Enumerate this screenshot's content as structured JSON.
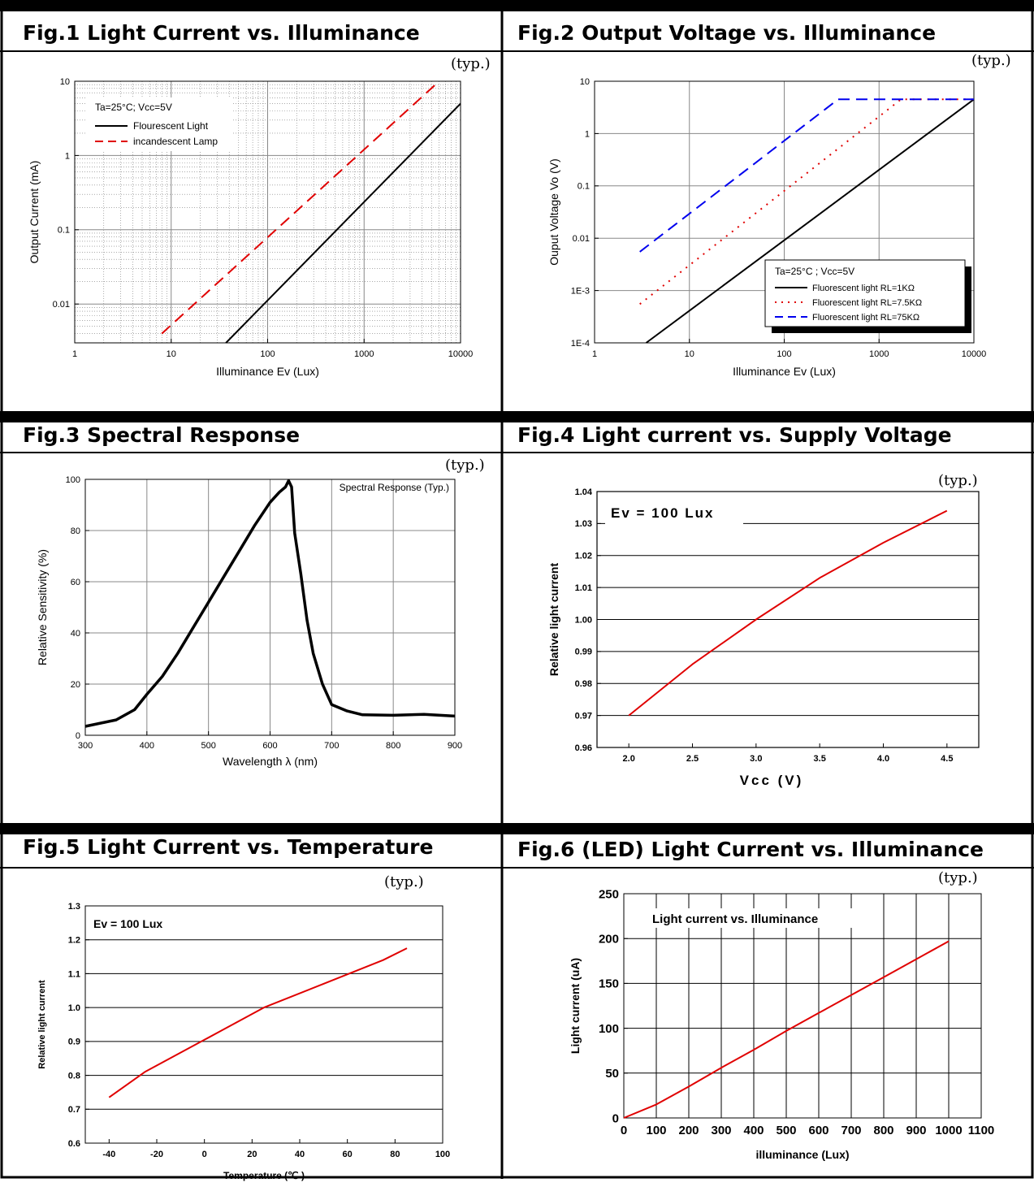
{
  "figures": [
    {
      "title": "Fig.1   Light Current vs. Illuminance",
      "typ": "(typ.)"
    },
    {
      "title": "Fig.2   Output Voltage vs. Illuminance",
      "typ": "(typ.)"
    },
    {
      "title": "Fig.3   Spectral Response",
      "typ": "(typ.)"
    },
    {
      "title": "Fig.4   Light current vs. Supply Voltage",
      "typ": "(typ.)"
    },
    {
      "title": "Fig.5   Light Current vs. Temperature",
      "typ": "(typ.)"
    },
    {
      "title": "Fig.6   (LED) Light Current vs. Illuminance",
      "typ": "(typ.)"
    }
  ],
  "chart_data": [
    {
      "type": "line",
      "xscale": "log",
      "yscale": "log",
      "xlim": [
        1,
        10000
      ],
      "ylim": [
        0.003,
        10
      ],
      "xticks": [
        "1",
        "10",
        "100",
        "1000",
        "10000"
      ],
      "yticks": [
        "0.01",
        "0.1",
        "1",
        "10"
      ],
      "xlabel": "Illuminance Ev (Lux)",
      "ylabel": "Output Current (mA)",
      "annotation": "Ta=25°C; Vcc=5V",
      "legend_position": "top-left",
      "grid": true,
      "series": [
        {
          "name": "Flourescent Light",
          "color": "#000000",
          "dash": "solid",
          "x": [
            37,
            10000
          ],
          "y": [
            0.003,
            5
          ]
        },
        {
          "name": "incandescent Lamp",
          "color": "#e00000",
          "dash": "dashed",
          "x": [
            8,
            6000
          ],
          "y": [
            0.004,
            10
          ]
        }
      ]
    },
    {
      "type": "line",
      "xscale": "log",
      "yscale": "log",
      "xlim": [
        1,
        10000
      ],
      "ylim": [
        0.0001,
        10
      ],
      "xticks": [
        "1",
        "10",
        "100",
        "1000",
        "10000"
      ],
      "yticks": [
        "1E-4",
        "1E-3",
        "0.01",
        "0.1",
        "1",
        "10"
      ],
      "xlabel": "Illuminance Ev (Lux)",
      "ylabel": "Ouput Voltage Vo (V)",
      "annotation": "Ta=25°C ; Vcc=5V",
      "legend_position": "bottom-right",
      "grid": true,
      "series": [
        {
          "name": "Fluorescent light  RL=1KΩ",
          "color": "#000000",
          "dash": "solid",
          "x": [
            3.5,
            10000
          ],
          "y": [
            0.0001,
            4.5
          ]
        },
        {
          "name": "Fluorescent light  RL=7.5KΩ",
          "color": "#e00000",
          "dash": "dotted",
          "x": [
            3,
            1700,
            10000
          ],
          "y": [
            0.00055,
            4.5,
            4.5
          ]
        },
        {
          "name": "Fluorescent light  RL=75KΩ",
          "color": "#0000ee",
          "dash": "dashed",
          "x": [
            3,
            370,
            10000
          ],
          "y": [
            0.0055,
            4.5,
            4.5
          ]
        }
      ]
    },
    {
      "type": "line",
      "xlim": [
        300,
        900
      ],
      "ylim": [
        0,
        100
      ],
      "xticks": [
        "300",
        "400",
        "500",
        "600",
        "700",
        "800",
        "900"
      ],
      "yticks": [
        "0",
        "20",
        "40",
        "60",
        "80",
        "100"
      ],
      "xlabel": "Wavelength  λ  (nm)",
      "ylabel": "Relative Sensitivity (%)",
      "annotation": "Spectral Response (Typ.)",
      "grid": true,
      "series": [
        {
          "name": "",
          "color": "#000000",
          "x": [
            300,
            350,
            380,
            400,
            425,
            450,
            475,
            500,
            525,
            550,
            575,
            600,
            615,
            625,
            630,
            635,
            640,
            650,
            660,
            670,
            685,
            700,
            725,
            750,
            800,
            850,
            900
          ],
          "y": [
            3.5,
            6,
            10,
            16,
            23,
            32,
            42,
            52,
            62,
            72,
            82,
            91,
            95,
            97,
            99.5,
            97,
            79,
            63,
            45,
            32,
            20,
            12,
            9.5,
            8,
            7.8,
            8.2,
            7.5
          ]
        }
      ]
    },
    {
      "type": "line",
      "xlim": [
        1.75,
        4.75
      ],
      "ylim": [
        0.96,
        1.04
      ],
      "xticks": [
        "2.0",
        "2.5",
        "3.0",
        "3.5",
        "4.0",
        "4.5"
      ],
      "yticks": [
        "0.96",
        "0.97",
        "0.98",
        "0.99",
        "1.00",
        "1.01",
        "1.02",
        "1.03",
        "1.04"
      ],
      "xlabel": "Vcc (V)",
      "ylabel": "Relative light current",
      "annotation": "Ev = 100 Lux",
      "grid": "horizontal",
      "series": [
        {
          "name": "",
          "color": "#e00000",
          "x": [
            2.0,
            2.5,
            3.0,
            3.5,
            4.0,
            4.5
          ],
          "y": [
            0.97,
            0.986,
            1.0,
            1.013,
            1.024,
            1.034
          ]
        }
      ]
    },
    {
      "type": "line",
      "xlim": [
        -50,
        100
      ],
      "ylim": [
        0.6,
        1.3
      ],
      "xticks": [
        "-40",
        "-20",
        "0",
        "20",
        "40",
        "60",
        "80",
        "100"
      ],
      "yticks": [
        "0.6",
        "0.7",
        "0.8",
        "0.9",
        "1.0",
        "1.1",
        "1.2",
        "1.3"
      ],
      "xlabel": "Temperature (℃ )",
      "ylabel": "Relative light current",
      "annotation": "Ev = 100 Lux",
      "grid": "horizontal",
      "series": [
        {
          "name": "",
          "color": "#e00000",
          "x": [
            -40,
            -25,
            0,
            25,
            50,
            75,
            85
          ],
          "y": [
            0.735,
            0.81,
            0.905,
            1.0,
            1.07,
            1.14,
            1.175
          ]
        }
      ]
    },
    {
      "type": "line",
      "xlim": [
        0,
        1100
      ],
      "ylim": [
        0,
        250
      ],
      "xticks": [
        "0",
        "100",
        "200",
        "300",
        "400",
        "500",
        "600",
        "700",
        "800",
        "900",
        "1000",
        "1100"
      ],
      "yticks": [
        "0",
        "50",
        "100",
        "150",
        "200",
        "250"
      ],
      "xlabel": "illuminance (Lux)",
      "ylabel": "Light current (uA)",
      "annotation": "Light current vs. Illuminance",
      "grid": true,
      "series": [
        {
          "name": "",
          "color": "#e00000",
          "x": [
            0,
            100,
            200,
            300,
            400,
            500,
            600,
            700,
            800,
            900,
            1000
          ],
          "y": [
            0,
            15,
            35,
            56,
            76,
            97,
            117,
            137,
            157,
            177,
            197
          ]
        }
      ]
    }
  ]
}
